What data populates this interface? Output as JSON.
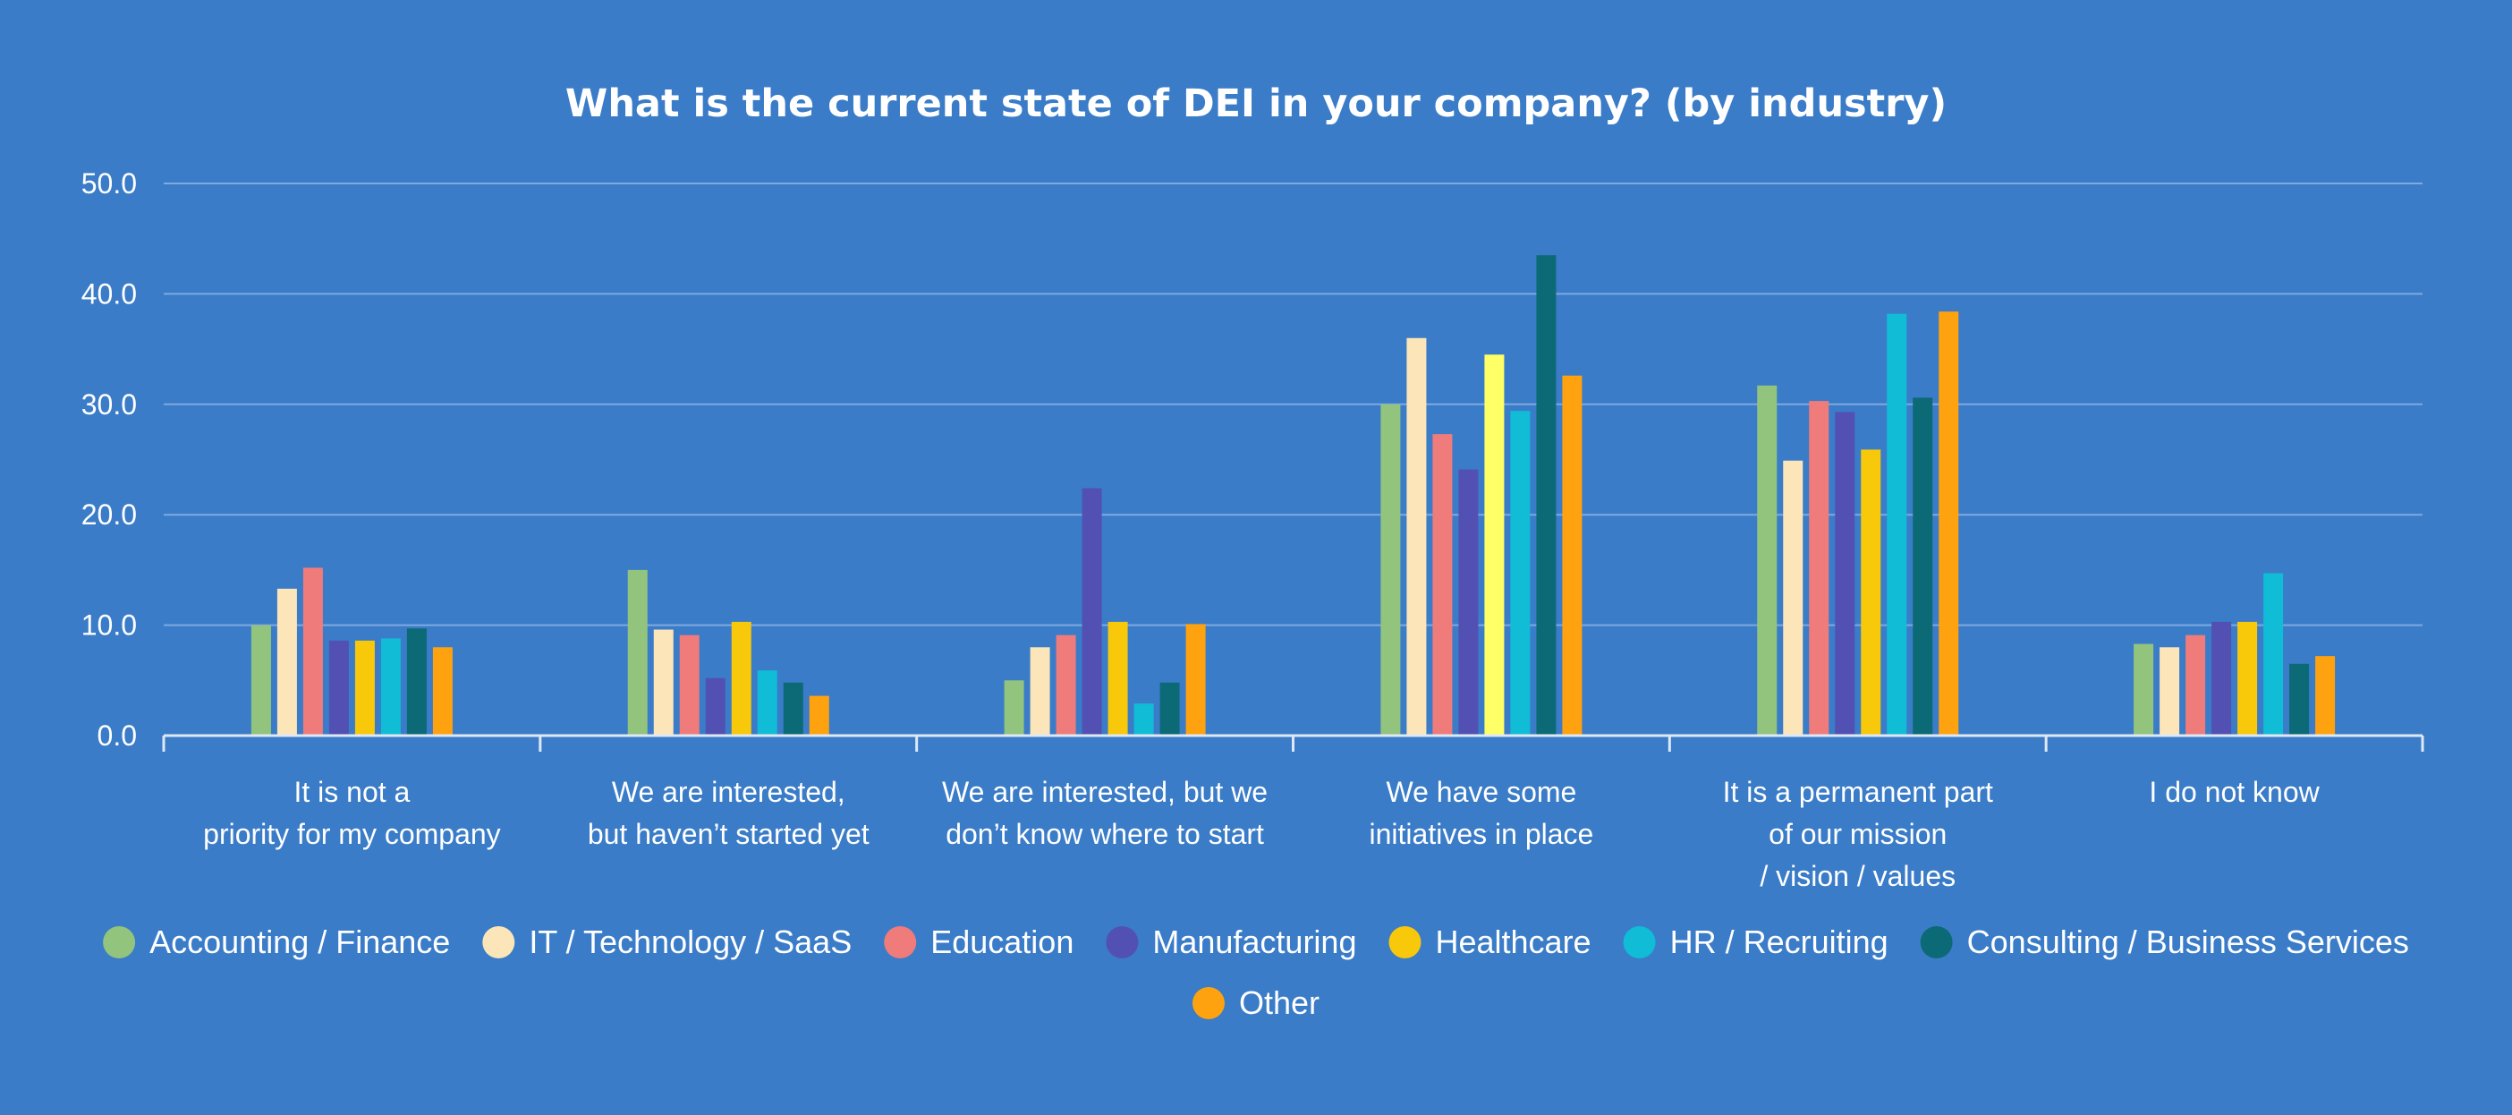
{
  "chart_data": {
    "type": "bar",
    "title": "What is the current state of DEI in your company? (by industry)",
    "xlabel": "",
    "ylabel": "",
    "ylim": [
      0,
      50
    ],
    "yticks": [
      "0.0",
      "10.0",
      "20.0",
      "30.0",
      "40.0",
      "50.0"
    ],
    "grid": true,
    "legend_position": "bottom",
    "categories": [
      [
        "It is not a",
        "priority for my company"
      ],
      [
        "We are interested,",
        "but haven’t started yet"
      ],
      [
        "We are interested, but we",
        "don’t know where to start"
      ],
      [
        "We have some",
        "initiatives in place"
      ],
      [
        "It is a permanent part",
        "of our mission",
        "/ vision / values"
      ],
      [
        "I do not know"
      ]
    ],
    "series": [
      {
        "name": "Accounting / Finance",
        "color": "#93c47d",
        "values": [
          10.0,
          15.0,
          5.0,
          30.0,
          31.7,
          8.3
        ]
      },
      {
        "name": "IT / Technology / SaaS",
        "color": "#fce5b8",
        "values": [
          13.3,
          9.6,
          8.0,
          36.0,
          24.9,
          8.0
        ]
      },
      {
        "name": "Education",
        "color": "#f07b7b",
        "values": [
          15.2,
          9.1,
          9.1,
          27.3,
          30.3,
          9.1
        ]
      },
      {
        "name": "Manufacturing",
        "color": "#5350b4",
        "values": [
          8.6,
          5.2,
          22.4,
          24.1,
          29.3,
          10.3
        ]
      },
      {
        "name": "Healthcare",
        "color": "#f8c80a",
        "values": [
          8.6,
          10.3,
          10.3,
          34.5,
          25.9,
          10.3
        ]
      },
      {
        "name": "HR / Recruiting",
        "color": "#10bcd6",
        "values": [
          8.8,
          5.9,
          2.9,
          29.4,
          38.2,
          14.7
        ]
      },
      {
        "name": "Consulting / Business Services",
        "color": "#0b6a76",
        "values": [
          9.7,
          4.8,
          4.8,
          43.5,
          30.6,
          6.5
        ]
      },
      {
        "name": "Other",
        "color": "#ffa20f",
        "values": [
          8.0,
          3.6,
          10.1,
          32.6,
          38.4,
          7.2
        ]
      }
    ],
    "highlight": {
      "category_index": 3,
      "series_index": 4,
      "color": "#ffff66"
    }
  }
}
